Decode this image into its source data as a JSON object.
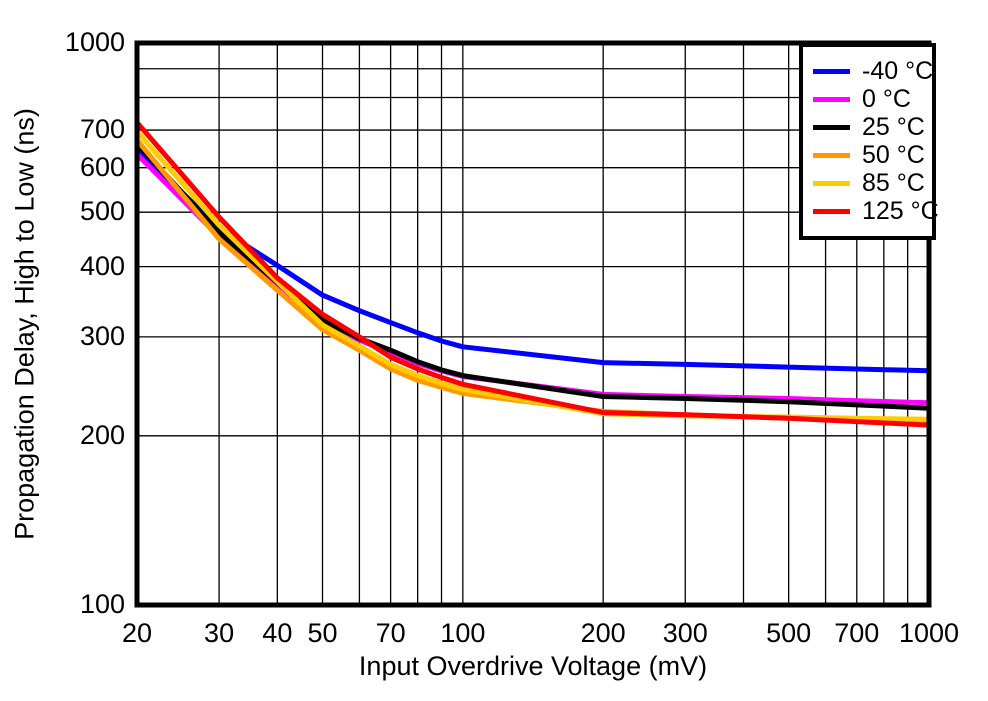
{
  "chart_data": {
    "type": "line",
    "title": "",
    "xlabel": "Input Overdrive Voltage (mV)",
    "ylabel": "Propagation Delay, High to Low (ns)",
    "x_scale": "log",
    "y_scale": "log",
    "xlim": [
      20,
      1000
    ],
    "ylim": [
      100,
      1000
    ],
    "grid": true,
    "legend_position": "top-right",
    "x_tick_labels": [
      20,
      30,
      40,
      50,
      70,
      100,
      200,
      300,
      500,
      700,
      1000
    ],
    "y_tick_labels": [
      100,
      200,
      300,
      400,
      500,
      600,
      700,
      1000
    ],
    "x_gridlines": [
      30,
      40,
      50,
      60,
      70,
      80,
      90,
      100,
      200,
      300,
      400,
      500,
      600,
      700,
      800,
      900
    ],
    "y_gridlines": [
      200,
      300,
      400,
      500,
      600,
      700,
      800,
      900
    ],
    "x": [
      20,
      30,
      40,
      50,
      60,
      70,
      80,
      90,
      100,
      200,
      300,
      500,
      700,
      1000
    ],
    "series": [
      {
        "name": "-40 °C",
        "color": "#0000FF",
        "values": [
          648,
          468,
          402,
          356,
          334,
          318,
          305,
          295,
          288,
          270,
          268,
          265,
          263,
          261
        ]
      },
      {
        "name": "0 °C",
        "color": "#FF00FF",
        "values": [
          634,
          452,
          373,
          318,
          296,
          281,
          269,
          261,
          255,
          237,
          235,
          233,
          231,
          229
        ]
      },
      {
        "name": "25 °C",
        "color": "#000000",
        "values": [
          662,
          460,
          375,
          321,
          298,
          284,
          271,
          262,
          256,
          235,
          233,
          230,
          227,
          224
        ]
      },
      {
        "name": "50 °C",
        "color": "#FF9900",
        "values": [
          672,
          448,
          363,
          309,
          284,
          263,
          251,
          244,
          238,
          221,
          218,
          215,
          213,
          211
        ]
      },
      {
        "name": "85 °C",
        "color": "#FFCC00",
        "values": [
          696,
          474,
          376,
          315,
          289,
          268,
          256,
          248,
          242,
          219,
          217,
          216,
          215,
          214
        ]
      },
      {
        "name": "125 °C",
        "color": "#FF0000",
        "values": [
          722,
          490,
          382,
          329,
          300,
          276,
          263,
          254,
          247,
          220,
          218,
          215,
          212,
          209
        ]
      }
    ],
    "frame_color": "#000000",
    "gridline_color": "#000000"
  }
}
